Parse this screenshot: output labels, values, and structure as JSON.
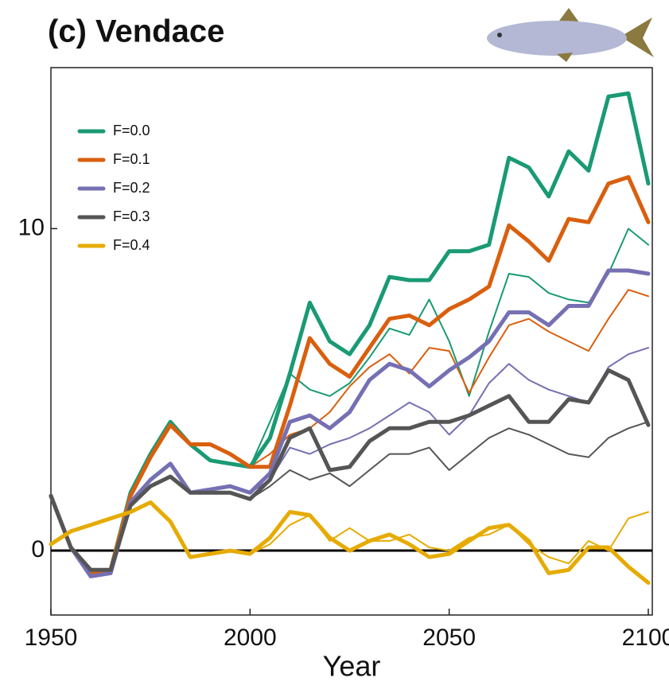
{
  "chart_data": {
    "type": "line",
    "title": "(c) Vendace",
    "x_label": "Year",
    "x": [
      1950,
      1955,
      1960,
      1965,
      1970,
      1975,
      1980,
      1985,
      1990,
      1995,
      2000,
      2005,
      2010,
      2015,
      2020,
      2025,
      2030,
      2035,
      2040,
      2045,
      2050,
      2055,
      2060,
      2065,
      2070,
      2075,
      2080,
      2085,
      2090,
      2095,
      2100
    ],
    "xlim": [
      1950,
      2101
    ],
    "xticks": [
      1950,
      2000,
      2050,
      2100
    ],
    "ylim": [
      -2,
      15
    ],
    "yticks": [
      0,
      10
    ],
    "zero_line": true,
    "series": [
      {
        "name": "F=0.0",
        "color": "#1a9a74",
        "linewidth": 5,
        "values": [
          1.7,
          0.1,
          -0.7,
          -0.6,
          1.8,
          3.0,
          4.0,
          3.3,
          2.8,
          2.7,
          2.6,
          3.5,
          5.5,
          7.7,
          6.5,
          6.1,
          7.0,
          8.5,
          8.4,
          8.4,
          9.3,
          9.3,
          9.5,
          12.2,
          11.9,
          11.0,
          12.4,
          11.8,
          14.1,
          14.2,
          11.4
        ]
      },
      {
        "name": "F=0.1",
        "color": "#d95f0e",
        "linewidth": 5,
        "values": [
          1.7,
          0.1,
          -0.7,
          -0.6,
          1.7,
          2.9,
          3.9,
          3.3,
          3.3,
          3.0,
          2.6,
          2.6,
          4.5,
          6.6,
          5.8,
          5.4,
          6.3,
          7.2,
          7.3,
          7.0,
          7.5,
          7.8,
          8.2,
          10.1,
          9.6,
          9.0,
          10.3,
          10.2,
          11.4,
          11.6,
          10.2
        ]
      },
      {
        "name": "F=0.2",
        "color": "#7570b3",
        "linewidth": 5,
        "values": [
          1.7,
          0.1,
          -0.8,
          -0.7,
          1.5,
          2.2,
          2.7,
          1.8,
          1.9,
          2.0,
          1.8,
          2.4,
          4.0,
          4.2,
          3.8,
          4.3,
          5.3,
          5.8,
          5.6,
          5.1,
          5.6,
          6.0,
          6.5,
          7.4,
          7.4,
          7.0,
          7.6,
          7.6,
          8.7,
          8.7,
          8.6
        ]
      },
      {
        "name": "F=0.3",
        "color": "#555555",
        "linewidth": 5,
        "values": [
          1.7,
          0.1,
          -0.6,
          -0.6,
          1.4,
          2.0,
          2.3,
          1.8,
          1.8,
          1.8,
          1.6,
          2.2,
          3.5,
          3.8,
          2.5,
          2.6,
          3.4,
          3.8,
          3.8,
          4.0,
          4.0,
          4.2,
          4.5,
          4.8,
          4.0,
          4.0,
          4.7,
          4.6,
          5.6,
          5.3,
          3.9
        ]
      },
      {
        "name": "F=0.4",
        "color": "#e6ab02",
        "linewidth": 5,
        "values": [
          0.2,
          0.6,
          0.8,
          1.0,
          1.2,
          1.5,
          0.9,
          -0.2,
          -0.1,
          0.0,
          -0.1,
          0.4,
          1.2,
          1.1,
          0.4,
          0.0,
          0.3,
          0.5,
          0.2,
          -0.2,
          -0.1,
          0.3,
          0.7,
          0.8,
          0.3,
          -0.7,
          -0.6,
          0.1,
          0.1,
          -0.5,
          -1.0
        ]
      },
      {
        "color": "#1a9a74",
        "linewidth": 2,
        "values": [
          1.7,
          0.1,
          -0.7,
          -0.6,
          1.8,
          3.0,
          4.0,
          3.3,
          2.8,
          2.7,
          2.6,
          4.0,
          5.5,
          5.0,
          4.8,
          5.2,
          6.0,
          6.9,
          6.7,
          7.8,
          6.5,
          4.8,
          6.8,
          8.6,
          8.5,
          8.0,
          7.8,
          7.7,
          8.6,
          10.0,
          9.5
        ]
      },
      {
        "color": "#d95f0e",
        "linewidth": 2,
        "values": [
          1.7,
          0.1,
          -0.7,
          -0.6,
          1.7,
          2.9,
          3.9,
          3.3,
          3.3,
          3.0,
          2.6,
          3.0,
          3.6,
          3.8,
          4.3,
          5.1,
          5.7,
          6.1,
          5.5,
          6.3,
          6.2,
          4.9,
          6.0,
          7.0,
          7.2,
          6.8,
          6.5,
          6.2,
          7.2,
          8.1,
          7.9
        ]
      },
      {
        "color": "#7570b3",
        "linewidth": 2,
        "values": [
          1.7,
          0.1,
          -0.8,
          -0.7,
          1.5,
          2.2,
          2.7,
          1.8,
          1.9,
          2.0,
          1.8,
          2.2,
          3.2,
          3.0,
          3.3,
          3.5,
          3.8,
          4.2,
          4.6,
          4.3,
          3.6,
          4.2,
          5.2,
          5.8,
          5.3,
          5.0,
          4.8,
          4.6,
          5.7,
          6.1,
          6.3
        ]
      },
      {
        "color": "#555555",
        "linewidth": 2,
        "values": [
          1.7,
          0.1,
          -0.6,
          -0.6,
          1.4,
          2.0,
          2.3,
          1.8,
          1.8,
          1.8,
          1.6,
          2.0,
          2.5,
          2.2,
          2.4,
          2.0,
          2.5,
          3.0,
          3.0,
          3.2,
          2.5,
          3.0,
          3.5,
          3.8,
          3.6,
          3.3,
          3.0,
          2.9,
          3.5,
          3.8,
          4.0
        ]
      },
      {
        "color": "#e6ab02",
        "linewidth": 2,
        "values": [
          0.2,
          0.6,
          0.8,
          1.0,
          1.2,
          1.5,
          0.9,
          -0.2,
          -0.1,
          0.0,
          -0.1,
          0.2,
          0.8,
          1.1,
          0.3,
          0.7,
          0.3,
          0.3,
          0.5,
          0.1,
          0.0,
          0.4,
          0.5,
          0.8,
          0.2,
          -0.2,
          -0.4,
          0.3,
          0.0,
          1.0,
          1.2
        ]
      }
    ]
  }
}
